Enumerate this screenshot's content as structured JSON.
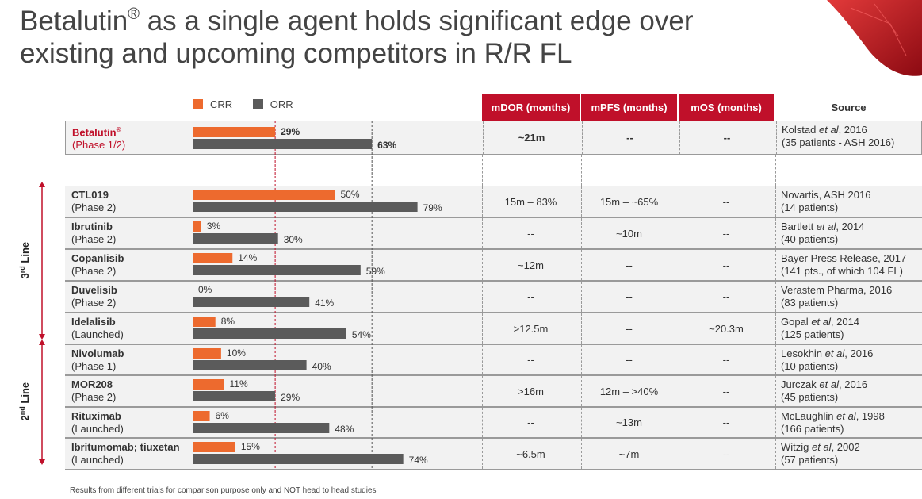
{
  "title": {
    "pre": "Betalutin",
    "mark": "®",
    "post": " as a single agent holds significant edge over existing and upcoming competitors in R/R FL"
  },
  "legend": {
    "crr": "CRR",
    "orr": "ORR"
  },
  "colors": {
    "crr": "#ed6a2e",
    "orr": "#5b5b5b",
    "accent": "#c0102a",
    "ref_line": "#c0102a"
  },
  "headers": {
    "mdor": "mDOR (months)",
    "mpfs": "mPFS (months)",
    "mos": "mOS (months)",
    "source": "Source"
  },
  "side_labels": {
    "third": {
      "pre": "3",
      "sup": "rd",
      "post": " Line"
    },
    "second": {
      "pre": "2",
      "sup": "nd",
      "post": " Line"
    }
  },
  "rows": [
    {
      "name": "Betalutin",
      "name_mark": "®",
      "phase": "(Phase 1/2)",
      "crr": 29,
      "orr": 63,
      "crr_label": "29%",
      "orr_label": "63%",
      "mdor": "~21m",
      "mpfs": "--",
      "mos": "--",
      "source1_pre": "Kolstad ",
      "source1_it": "et al",
      "source1_post": ", 2016",
      "source2": "(35 patients - ASH 2016)"
    },
    {
      "name": "CTL019",
      "phase": "(Phase 2)",
      "crr": 50,
      "orr": 79,
      "crr_label": "50%",
      "orr_label": "79%",
      "mdor": "15m – 83%",
      "mpfs": "15m – ~65%",
      "mos": "--",
      "source1_pre": "Novartis, ASH 2016",
      "source1_it": "",
      "source1_post": "",
      "source2": "(14 patients)"
    },
    {
      "name": "Ibrutinib",
      "phase": "(Phase 2)",
      "crr": 3,
      "orr": 30,
      "crr_label": "3%",
      "orr_label": "30%",
      "mdor": "--",
      "mpfs": "~10m",
      "mos": "--",
      "source1_pre": "Bartlett ",
      "source1_it": "et al",
      "source1_post": ", 2014",
      "source2": "(40 patients)"
    },
    {
      "name": "Copanlisib",
      "phase": "(Phase 2)",
      "crr": 14,
      "orr": 59,
      "crr_label": "14%",
      "orr_label": "59%",
      "mdor": "~12m",
      "mpfs": "--",
      "mos": "--",
      "source1_pre": "Bayer Press Release, 2017",
      "source1_it": "",
      "source1_post": "",
      "source2": "(141 pts., of which 104 FL)"
    },
    {
      "name": "Duvelisib",
      "phase": "(Phase 2)",
      "crr": 0,
      "orr": 41,
      "crr_label": "0%",
      "orr_label": "41%",
      "mdor": "--",
      "mpfs": "--",
      "mos": "--",
      "source1_pre": "Verastem Pharma, 2016",
      "source1_it": "",
      "source1_post": "",
      "source2": "(83 patients)"
    },
    {
      "name": "Idelalisib",
      "phase": "(Launched)",
      "crr": 8,
      "orr": 54,
      "crr_label": "8%",
      "orr_label": "54%",
      "mdor": ">12.5m",
      "mpfs": "--",
      "mos": "~20.3m",
      "source1_pre": "Gopal ",
      "source1_it": "et al",
      "source1_post": ", 2014",
      "source2": "(125 patients)"
    },
    {
      "name": "Nivolumab",
      "phase": "(Phase 1)",
      "crr": 10,
      "orr": 40,
      "crr_label": "10%",
      "orr_label": "40%",
      "mdor": "--",
      "mpfs": "--",
      "mos": "--",
      "source1_pre": "Lesokhin ",
      "source1_it": "et al",
      "source1_post": ", 2016",
      "source2": "(10 patients)"
    },
    {
      "name": "MOR208",
      "phase": "(Phase 2)",
      "crr": 11,
      "orr": 29,
      "crr_label": "11%",
      "orr_label": "29%",
      "mdor": ">16m",
      "mpfs": "12m – >40%",
      "mos": "--",
      "source1_pre": "Jurczak ",
      "source1_it": "et al",
      "source1_post": ", 2016",
      "source2": "(45 patients)"
    },
    {
      "name": "Rituximab",
      "phase": "(Launched)",
      "crr": 6,
      "orr": 48,
      "crr_label": "6%",
      "orr_label": "48%",
      "mdor": "--",
      "mpfs": "~13m",
      "mos": "--",
      "source1_pre": "McLaughlin ",
      "source1_it": "et al",
      "source1_post": ", 1998",
      "source2": "(166 patients)"
    },
    {
      "name": "Ibritumomab; tiuxetan",
      "phase": "(Launched)",
      "crr": 15,
      "orr": 74,
      "crr_label": "15%",
      "orr_label": "74%",
      "mdor": "~6.5m",
      "mpfs": "~7m",
      "mos": "--",
      "source1_pre": "Witzig ",
      "source1_it": "et al",
      "source1_post": ", 2002",
      "source2": "(57 patients)"
    }
  ],
  "chart_data": {
    "type": "bar",
    "orientation": "horizontal",
    "categories": [
      "Betalutin (Phase 1/2)",
      "CTL019 (Phase 2)",
      "Ibrutinib (Phase 2)",
      "Copanlisib (Phase 2)",
      "Duvelisib (Phase 2)",
      "Idelalisib (Launched)",
      "Nivolumab (Phase 1)",
      "MOR208 (Phase 2)",
      "Rituximab (Launched)",
      "Ibritumomab; tiuxetan (Launched)"
    ],
    "series": [
      {
        "name": "CRR",
        "values": [
          29,
          50,
          3,
          14,
          0,
          8,
          10,
          11,
          6,
          15
        ]
      },
      {
        "name": "ORR",
        "values": [
          63,
          79,
          30,
          59,
          41,
          54,
          40,
          29,
          48,
          74
        ]
      }
    ],
    "reference_lines": [
      29,
      63
    ],
    "xlim": [
      0,
      100
    ],
    "legend_position": "top"
  },
  "footnote": "Results from different trials for comparison purpose only and NOT head to head studies"
}
